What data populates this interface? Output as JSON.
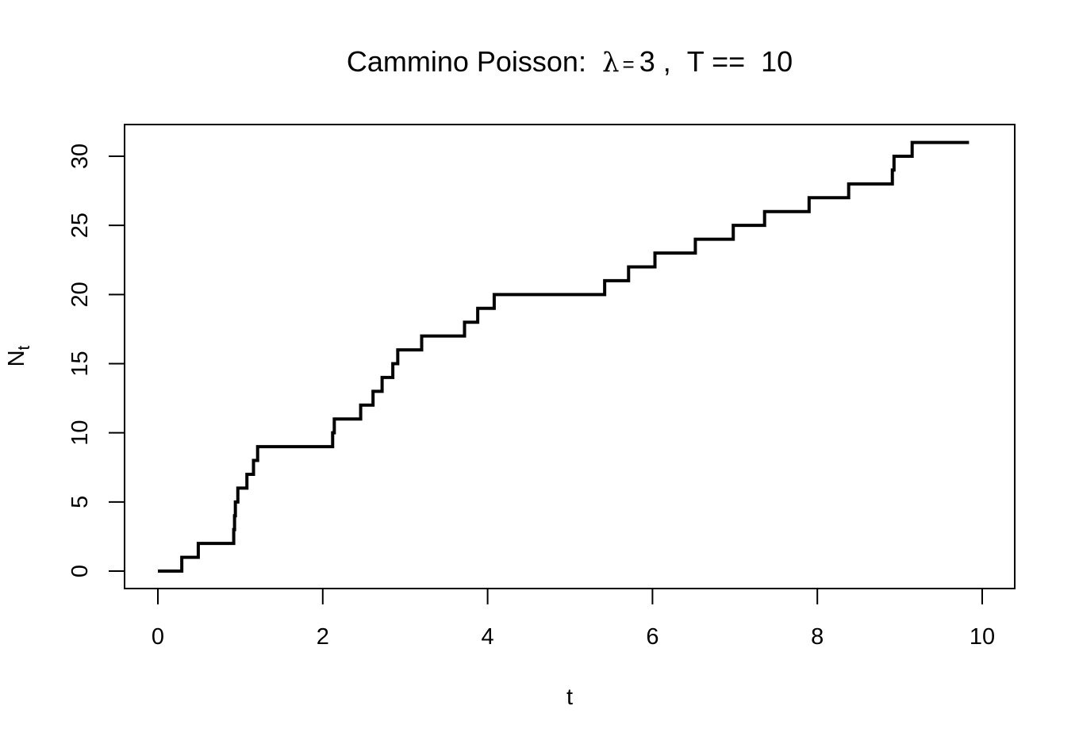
{
  "chart_data": {
    "type": "line",
    "step": true,
    "title": {
      "prefix": "Cammino Poisson:  ",
      "lambda_symbol": "λ",
      "equals_small": "=",
      "lambda_value": "3 ,  T ==  10"
    },
    "xlabel": "t",
    "ylabel": {
      "main": "N",
      "sub": "t"
    },
    "xlim": [
      0,
      10
    ],
    "ylim": [
      0,
      30
    ],
    "x_ticks": [
      0,
      2,
      4,
      6,
      8,
      10
    ],
    "y_ticks": [
      0,
      5,
      10,
      15,
      20,
      25,
      30
    ],
    "grid": false,
    "series": [
      {
        "color": "#000000",
        "jump_times": [
          0.29,
          0.49,
          0.92,
          0.93,
          0.94,
          0.97,
          1.08,
          1.16,
          1.21,
          2.12,
          2.14,
          2.46,
          2.61,
          2.72,
          2.85,
          2.91,
          3.2,
          3.72,
          3.88,
          4.08,
          5.42,
          5.71,
          6.03,
          6.52,
          6.98,
          7.36,
          7.9,
          8.38,
          8.91,
          8.93,
          9.15,
          9.84
        ],
        "values": [
          0,
          1,
          2,
          3,
          4,
          5,
          6,
          7,
          8,
          9,
          10,
          11,
          12,
          13,
          14,
          15,
          16,
          17,
          18,
          19,
          20,
          21,
          22,
          23,
          24,
          25,
          26,
          27,
          28,
          29,
          30,
          31
        ],
        "t_end": 10
      }
    ]
  }
}
